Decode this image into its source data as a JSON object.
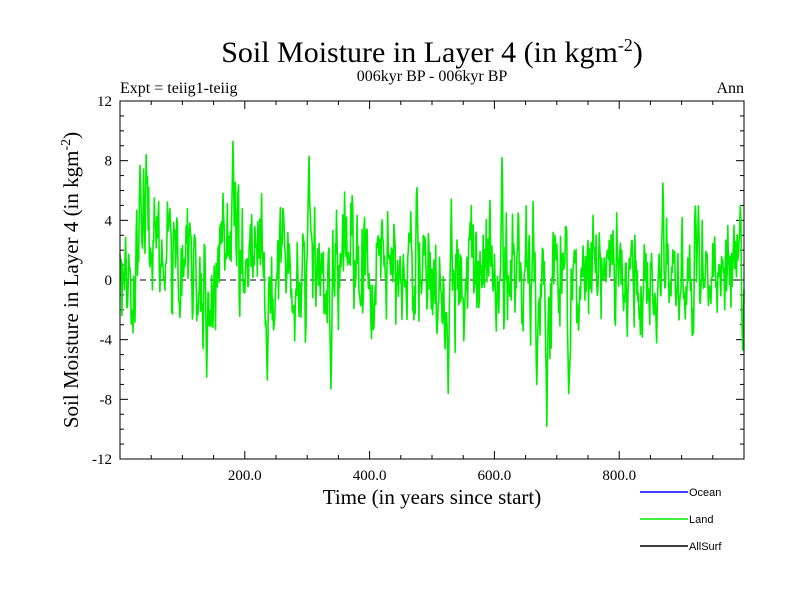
{
  "chart_data": {
    "type": "line",
    "title": "Soil Moisture in Layer 4 (in kgm",
    "title_sup": "-2",
    "title_end": ")",
    "subtitle_left": "Expt = teiig1-teiig",
    "subtitle_center": "006kyr BP - 006kyr BP",
    "subtitle_right": "Ann",
    "xlabel": "Time (in years since start)",
    "ylabel": "Soil Moisture in Layer 4 (in kgm",
    "ylabel_sup": "-2",
    "ylabel_end": ")",
    "xlim": [
      0,
      1000
    ],
    "ylim": [
      -12,
      12
    ],
    "xticks": [
      200,
      400,
      600,
      800
    ],
    "xtick_labels": [
      "200.0",
      "400.0",
      "600.0",
      "800.0"
    ],
    "yticks": [
      -12,
      -8,
      -4,
      0,
      4,
      8,
      12
    ],
    "ytick_labels": [
      "-12",
      "-8",
      "-4",
      "0",
      "4",
      "8",
      "12"
    ],
    "zero_line": "dashed",
    "legend_position": "below-right",
    "series": [
      {
        "name": "Ocean",
        "color": "#0000ff",
        "x": [],
        "values": []
      },
      {
        "name": "Land",
        "color": "#00ee00",
        "x": [
          0,
          20,
          40,
          60,
          80,
          100,
          120,
          140,
          160,
          180,
          200,
          220,
          240,
          260,
          280,
          300,
          320,
          340,
          360,
          380,
          400,
          420,
          440,
          460,
          480,
          500,
          520,
          540,
          560,
          580,
          600,
          620,
          640,
          660,
          680,
          700,
          720,
          740,
          760,
          780,
          800,
          820,
          840,
          860,
          880,
          900,
          920,
          940,
          960,
          980,
          1000
        ],
        "values": [
          0.5,
          1.8,
          2.5,
          2.8,
          2.2,
          0.6,
          1.2,
          -0.6,
          1.4,
          2.1,
          0.5,
          1.0,
          -1.4,
          0.8,
          0.3,
          1.6,
          0.6,
          -0.6,
          1.4,
          0.8,
          0.2,
          1.2,
          0.5,
          0.6,
          0.6,
          -0.2,
          -1.4,
          0.2,
          0.2,
          0.8,
          0.6,
          0.1,
          0.8,
          0.6,
          -1.6,
          0.2,
          1.0,
          0.0,
          0.5,
          1.5,
          0.7,
          0.2,
          -0.2,
          0.5,
          0.3,
          0.4,
          0.6,
          0.0,
          0.2,
          0.6,
          0.2
        ],
        "amplitude": [
          2.6,
          2.8,
          3.4,
          2.9,
          2.4,
          2.6,
          2.7,
          2.8,
          2.4,
          3.2,
          2.6,
          2.5,
          2.6,
          2.4,
          2.6,
          2.9,
          2.4,
          2.6,
          2.4,
          2.6,
          2.4,
          2.6,
          2.4,
          2.7,
          2.7,
          2.4,
          2.5,
          2.9,
          2.5,
          2.6,
          2.6,
          2.7,
          2.3,
          2.6,
          3.0,
          2.8,
          2.5,
          2.6,
          2.4,
          2.5,
          2.5,
          2.5,
          2.5,
          2.3,
          2.5,
          2.4,
          2.3,
          2.2,
          2.4,
          2.5,
          2.4
        ],
        "extremes": [
          {
            "x": 42,
            "y": 8.4
          },
          {
            "x": 80,
            "y": 4.8
          },
          {
            "x": 139,
            "y": -6.5
          },
          {
            "x": 181,
            "y": 9.3
          },
          {
            "x": 236,
            "y": -6.7
          },
          {
            "x": 303,
            "y": 8.3
          },
          {
            "x": 338,
            "y": -7.3
          },
          {
            "x": 476,
            "y": 6.2
          },
          {
            "x": 526,
            "y": -7.6
          },
          {
            "x": 612,
            "y": 8.2
          },
          {
            "x": 684,
            "y": -9.8
          },
          {
            "x": 668,
            "y": -7.0
          },
          {
            "x": 719,
            "y": -7.6
          },
          {
            "x": 870,
            "y": 6.5
          },
          {
            "x": 994,
            "y": 5.0
          },
          {
            "x": 998,
            "y": -4.7
          }
        ]
      },
      {
        "name": "AllSurf",
        "color": "#000000",
        "x": [],
        "values": []
      }
    ]
  }
}
